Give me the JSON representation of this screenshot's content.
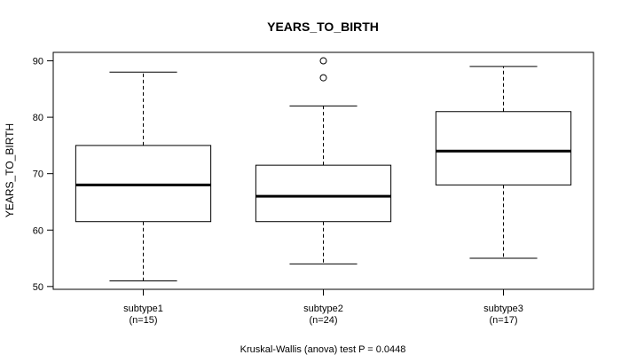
{
  "chart_data": {
    "type": "box",
    "title": "YEARS_TO_BIRTH",
    "ylabel": "YEARS_TO_BIRTH",
    "xlabel": "",
    "ylim": [
      49.5,
      91.5
    ],
    "yticks": [
      50,
      60,
      70,
      80,
      90
    ],
    "groups": [
      {
        "label": "subtype1",
        "n_label": "(n=15)",
        "min": 51,
        "q1": 61.5,
        "median": 68,
        "q3": 75,
        "max": 88,
        "outliers": []
      },
      {
        "label": "subtype2",
        "n_label": "(n=24)",
        "min": 54,
        "q1": 61.5,
        "median": 66,
        "q3": 71.5,
        "max": 82,
        "outliers": [
          87,
          90
        ]
      },
      {
        "label": "subtype3",
        "n_label": "(n=17)",
        "min": 55,
        "q1": 68,
        "median": 74,
        "q3": 81,
        "max": 89,
        "outliers": []
      }
    ],
    "footnote": "Kruskal-Wallis (anova) test P = 0.0448"
  }
}
